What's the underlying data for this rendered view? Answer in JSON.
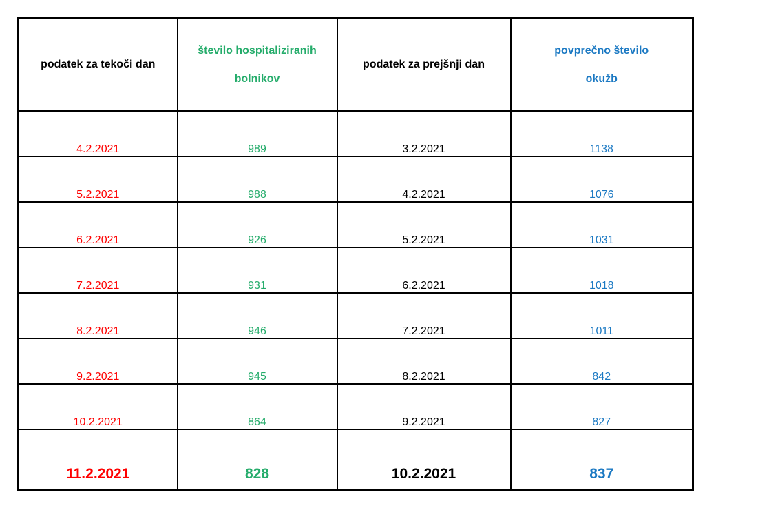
{
  "colors": {
    "red": "#fe0000",
    "green": "#25ac6b",
    "blue": "#1b79c3",
    "black": "#000000",
    "border": "#000000"
  },
  "table": {
    "headers": [
      {
        "id": "current-day",
        "lines": [
          "podatek za tekoči dan"
        ],
        "color_key": "black"
      },
      {
        "id": "hospitalized",
        "lines": [
          "število hospitaliziranih",
          "bolnikov"
        ],
        "color_key": "green"
      },
      {
        "id": "previous-day",
        "lines": [
          "podatek za prejšnji dan"
        ],
        "color_key": "black"
      },
      {
        "id": "avg-infections",
        "lines": [
          "povprečno število",
          "okužb"
        ],
        "color_key": "blue"
      }
    ],
    "rows": [
      {
        "current_date": "4.2.2021",
        "hospitalized": "989",
        "previous_date": "3.2.2021",
        "avg_infections": "1138",
        "emphasis": false
      },
      {
        "current_date": "5.2.2021",
        "hospitalized": "988",
        "previous_date": "4.2.2021",
        "avg_infections": "1076",
        "emphasis": false
      },
      {
        "current_date": "6.2.2021",
        "hospitalized": "926",
        "previous_date": "5.2.2021",
        "avg_infections": "1031",
        "emphasis": false
      },
      {
        "current_date": "7.2.2021",
        "hospitalized": "931",
        "previous_date": "6.2.2021",
        "avg_infections": "1018",
        "emphasis": false
      },
      {
        "current_date": "8.2.2021",
        "hospitalized": "946",
        "previous_date": "7.2.2021",
        "avg_infections": "1011",
        "emphasis": false
      },
      {
        "current_date": "9.2.2021",
        "hospitalized": "945",
        "previous_date": "8.2.2021",
        "avg_infections": "842",
        "emphasis": false
      },
      {
        "current_date": "10.2.2021",
        "hospitalized": "864",
        "previous_date": "9.2.2021",
        "avg_infections": "827",
        "emphasis": false
      },
      {
        "current_date": "11.2.2021",
        "hospitalized": "828",
        "previous_date": "10.2.2021",
        "avg_infections": "837",
        "emphasis": true
      }
    ]
  }
}
